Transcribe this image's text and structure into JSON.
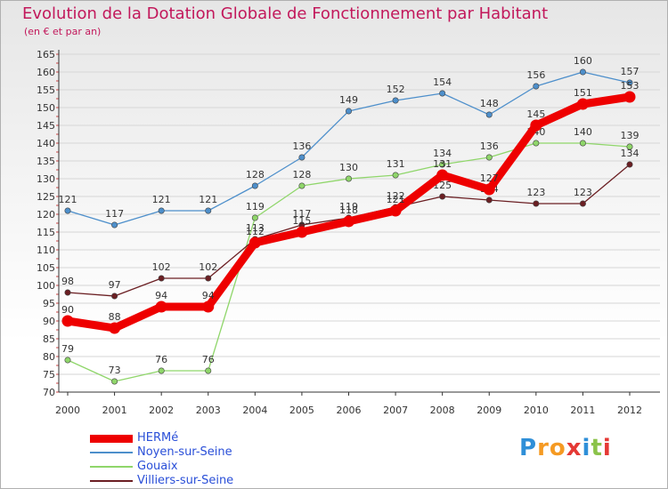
{
  "chart_data": {
    "type": "line",
    "title": "Evolution de la Dotation Globale de Fonctionnement par Habitant",
    "subtitle": "(en € et par an)",
    "categories": [
      "2000",
      "2001",
      "2002",
      "2003",
      "2004",
      "2005",
      "2006",
      "2007",
      "2008",
      "2009",
      "2010",
      "2011",
      "2012"
    ],
    "ylim": [
      70,
      165
    ],
    "yticks": [
      70,
      75,
      80,
      85,
      90,
      95,
      100,
      105,
      110,
      115,
      120,
      125,
      130,
      135,
      140,
      145,
      150,
      155,
      160,
      165
    ],
    "series": [
      {
        "name": "HERMé",
        "color": "#ee0000",
        "values": [
          90,
          88,
          94,
          94,
          112,
          115,
          118,
          121,
          131,
          127,
          145,
          151,
          153
        ]
      },
      {
        "name": "Noyen-sur-Seine",
        "color": "#4d8fcb",
        "values": [
          121,
          117,
          121,
          121,
          128,
          136,
          149,
          152,
          154,
          148,
          156,
          160,
          157
        ]
      },
      {
        "name": "Gouaix",
        "color": "#8fd66a",
        "values": [
          79,
          73,
          76,
          76,
          119,
          128,
          130,
          131,
          134,
          136,
          140,
          140,
          139
        ]
      },
      {
        "name": "Villiers-sur-Seine",
        "color": "#6b1f23",
        "values": [
          98,
          97,
          102,
          102,
          113,
          117,
          119,
          122,
          125,
          124,
          123,
          123,
          134
        ]
      }
    ]
  },
  "logo": {
    "text": "Proxiti",
    "letters": [
      "P",
      "r",
      "o",
      "x",
      "i",
      "t",
      "i"
    ],
    "colors": [
      "#2f8fd8",
      "#f59a23",
      "#f59a23",
      "#e53935",
      "#2f8fd8",
      "#8bc34a",
      "#e53935"
    ]
  }
}
